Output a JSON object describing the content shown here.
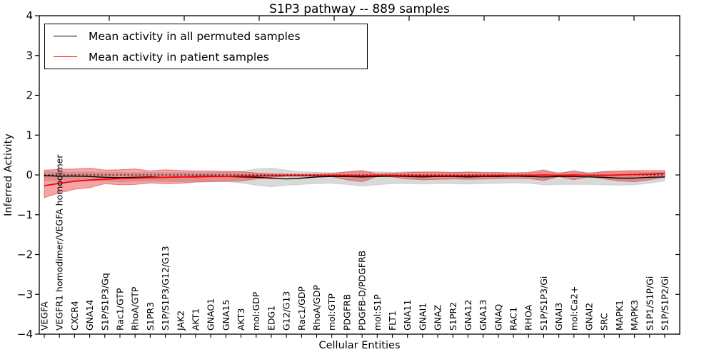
{
  "title": "S1P3 pathway -- 889 samples",
  "legend": {
    "items": [
      {
        "id": "permuted-mean",
        "label": "Mean activity in all permuted samples",
        "color": "#000000"
      },
      {
        "id": "patient-mean",
        "label": "Mean activity in patient samples",
        "color": "#ff0000"
      }
    ]
  },
  "chart_data": {
    "type": "line",
    "title": "S1P3 pathway -- 889 samples",
    "xlabel": "Cellular Entities",
    "ylabel": "Inferred Activity",
    "ylim": [
      -4,
      4
    ],
    "yticks": [
      4,
      3,
      2,
      1,
      0,
      -1,
      -2,
      -3,
      -4
    ],
    "ytick_labels": [
      "4",
      "3",
      "2",
      "1",
      "0",
      "−1",
      "−2",
      "−3",
      "−4"
    ],
    "grid": false,
    "legend_position": "upper left",
    "zero_line": {
      "value": 0,
      "style": "dashed",
      "color": "#000000"
    },
    "categories": [
      "VEGFA",
      "VEGFR1 homodimer/VEGFA homodimer",
      "CXCR4",
      "GNA14",
      "S1P/S1P3/Gq",
      "Rac1/GTP",
      "RhoA/GTP",
      "S1PR3",
      "S1P/S1P3/G12/G13",
      "JAK2",
      "AKT1",
      "GNAO1",
      "GNA15",
      "AKT3",
      "mol:GDP",
      "EDG1",
      "G12/G13",
      "Rac1/GDP",
      "RhoA/GDP",
      "mol:GTP",
      "PDGFRB",
      "PDGFB-D/PDGFRB",
      "mol:S1P",
      "FLT1",
      "GNA11",
      "GNAI1",
      "GNAZ",
      "S1PR2",
      "GNA12",
      "GNA13",
      "GNAQ",
      "RAC1",
      "RHOA",
      "S1P/S1P3/Gi",
      "GNAI3",
      "mol:Ca2+",
      "GNAI2",
      "SRC",
      "MAPK1",
      "MAPK3",
      "S1P1/S1P/Gi",
      "S1P/S1P2/Gi"
    ],
    "series": [
      {
        "id": "permuted-mean",
        "name": "Mean activity in all permuted samples",
        "color": "#000000",
        "style": "solid",
        "values": [
          -0.02,
          -0.03,
          -0.03,
          -0.04,
          -0.06,
          -0.07,
          -0.06,
          -0.05,
          -0.06,
          -0.05,
          -0.04,
          -0.03,
          -0.04,
          -0.05,
          -0.06,
          -0.08,
          -0.1,
          -0.08,
          -0.05,
          -0.04,
          -0.04,
          -0.05,
          -0.04,
          -0.03,
          -0.04,
          -0.05,
          -0.04,
          -0.04,
          -0.05,
          -0.04,
          -0.04,
          -0.03,
          -0.04,
          -0.05,
          -0.04,
          -0.04,
          -0.05,
          -0.06,
          -0.08,
          -0.08,
          -0.06,
          -0.05
        ]
      },
      {
        "id": "patient-mean",
        "name": "Mean activity in patient samples",
        "color": "#ff0000",
        "style": "solid",
        "values": [
          -0.27,
          -0.21,
          -0.16,
          -0.13,
          -0.11,
          -0.09,
          -0.08,
          -0.07,
          -0.06,
          -0.05,
          -0.05,
          -0.04,
          -0.04,
          -0.03,
          -0.03,
          -0.02,
          -0.02,
          -0.02,
          -0.02,
          -0.01,
          -0.01,
          -0.02,
          -0.01,
          -0.01,
          -0.02,
          -0.02,
          -0.02,
          -0.02,
          -0.02,
          -0.02,
          -0.01,
          -0.01,
          -0.01,
          0.0,
          -0.01,
          0.0,
          -0.01,
          -0.01,
          0.0,
          0.01,
          0.02,
          0.04
        ]
      }
    ],
    "bands": [
      {
        "id": "permuted-range",
        "name": "Permuted samples activity range",
        "fill": "rgba(0,0,0,0.15)",
        "stroke": "rgba(0,0,0,0.10)",
        "upper": [
          0.08,
          0.07,
          0.07,
          0.07,
          0.06,
          0.06,
          0.06,
          0.06,
          0.06,
          0.06,
          0.06,
          0.06,
          0.07,
          0.09,
          0.15,
          0.17,
          0.12,
          0.08,
          0.07,
          0.06,
          0.07,
          0.09,
          0.08,
          0.07,
          0.08,
          0.08,
          0.08,
          0.07,
          0.08,
          0.07,
          0.07,
          0.06,
          0.07,
          0.08,
          0.07,
          0.07,
          0.07,
          0.08,
          0.08,
          0.08,
          0.07,
          0.07
        ],
        "lower": [
          -0.15,
          -0.15,
          -0.14,
          -0.14,
          -0.16,
          -0.17,
          -0.16,
          -0.15,
          -0.16,
          -0.17,
          -0.16,
          -0.16,
          -0.17,
          -0.2,
          -0.26,
          -0.3,
          -0.26,
          -0.24,
          -0.22,
          -0.21,
          -0.24,
          -0.28,
          -0.25,
          -0.22,
          -0.22,
          -0.23,
          -0.22,
          -0.22,
          -0.23,
          -0.22,
          -0.21,
          -0.2,
          -0.21,
          -0.25,
          -0.24,
          -0.24,
          -0.24,
          -0.25,
          -0.26,
          -0.25,
          -0.21,
          -0.15
        ]
      },
      {
        "id": "patient-range",
        "name": "Patient samples activity range",
        "fill": "rgba(230,40,40,0.42)",
        "stroke": "rgba(217,48,48,0.55)",
        "upper": [
          0.12,
          0.14,
          0.15,
          0.17,
          0.12,
          0.13,
          0.15,
          0.1,
          0.13,
          0.11,
          0.1,
          0.1,
          0.09,
          0.08,
          0.05,
          0.03,
          0.02,
          0.02,
          0.02,
          0.03,
          0.08,
          0.11,
          0.03,
          0.04,
          0.06,
          0.07,
          0.07,
          0.06,
          0.07,
          0.06,
          0.06,
          0.05,
          0.06,
          0.13,
          0.03,
          0.11,
          0.03,
          0.09,
          0.1,
          0.11,
          0.11,
          0.11
        ],
        "lower": [
          -0.57,
          -0.45,
          -0.36,
          -0.32,
          -0.22,
          -0.25,
          -0.24,
          -0.2,
          -0.22,
          -0.21,
          -0.18,
          -0.17,
          -0.16,
          -0.15,
          -0.1,
          -0.06,
          -0.03,
          -0.03,
          -0.03,
          -0.04,
          -0.12,
          -0.17,
          -0.04,
          -0.05,
          -0.1,
          -0.12,
          -0.11,
          -0.1,
          -0.11,
          -0.1,
          -0.09,
          -0.08,
          -0.09,
          -0.14,
          -0.04,
          -0.12,
          -0.04,
          -0.1,
          -0.15,
          -0.17,
          -0.12,
          -0.06
        ]
      }
    ]
  }
}
